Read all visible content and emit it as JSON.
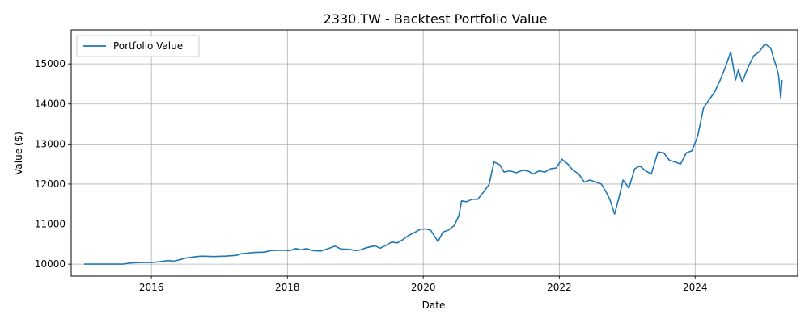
{
  "chart_data": {
    "type": "line",
    "title": "2330.TW - Backtest Portfolio Value",
    "xlabel": "Date",
    "ylabel": "Value ($)",
    "xlim": [
      "2014-10-27",
      "2025-07-05"
    ],
    "ylim": [
      9700,
      15850
    ],
    "x_ticks": [
      "2016",
      "2018",
      "2020",
      "2022",
      "2024"
    ],
    "y_ticks": [
      10000,
      11000,
      12000,
      13000,
      14000,
      15000
    ],
    "grid": true,
    "legend": "upper-left",
    "colors": {
      "series": "#1f77b4",
      "grid": "#b0b0b0"
    },
    "series": [
      {
        "name": "Portfolio Value",
        "points": [
          [
            "2015-01-05",
            10000
          ],
          [
            "2015-04-01",
            10000
          ],
          [
            "2015-08-01",
            10000
          ],
          [
            "2015-09-15",
            10030
          ],
          [
            "2015-11-01",
            10040
          ],
          [
            "2016-01-01",
            10040
          ],
          [
            "2016-02-15",
            10060
          ],
          [
            "2016-04-01",
            10090
          ],
          [
            "2016-05-01",
            10075
          ],
          [
            "2016-06-01",
            10110
          ],
          [
            "2016-07-01",
            10150
          ],
          [
            "2016-08-01",
            10170
          ],
          [
            "2016-09-01",
            10190
          ],
          [
            "2016-10-01",
            10200
          ],
          [
            "2016-12-01",
            10190
          ],
          [
            "2017-02-01",
            10200
          ],
          [
            "2017-04-01",
            10220
          ],
          [
            "2017-05-01",
            10260
          ],
          [
            "2017-07-01",
            10290
          ],
          [
            "2017-09-01",
            10300
          ],
          [
            "2017-10-01",
            10340
          ],
          [
            "2017-12-01",
            10350
          ],
          [
            "2018-01-15",
            10340
          ],
          [
            "2018-02-15",
            10390
          ],
          [
            "2018-03-15",
            10360
          ],
          [
            "2018-04-15",
            10390
          ],
          [
            "2018-05-15",
            10340
          ],
          [
            "2018-07-01",
            10330
          ],
          [
            "2018-08-15",
            10400
          ],
          [
            "2018-09-15",
            10450
          ],
          [
            "2018-10-15",
            10380
          ],
          [
            "2018-12-01",
            10370
          ],
          [
            "2019-01-01",
            10340
          ],
          [
            "2019-02-01",
            10360
          ],
          [
            "2019-03-01",
            10410
          ],
          [
            "2019-04-15",
            10460
          ],
          [
            "2019-05-15",
            10400
          ],
          [
            "2019-06-15",
            10470
          ],
          [
            "2019-07-15",
            10550
          ],
          [
            "2019-08-15",
            10530
          ],
          [
            "2019-09-15",
            10620
          ],
          [
            "2019-10-15",
            10720
          ],
          [
            "2019-11-15",
            10790
          ],
          [
            "2019-12-15",
            10870
          ],
          [
            "2020-01-10",
            10880
          ],
          [
            "2020-02-10",
            10850
          ],
          [
            "2020-03-20",
            10560
          ],
          [
            "2020-04-15",
            10800
          ],
          [
            "2020-05-15",
            10850
          ],
          [
            "2020-06-15",
            10960
          ],
          [
            "2020-07-10",
            11200
          ],
          [
            "2020-07-25",
            11580
          ],
          [
            "2020-08-20",
            11560
          ],
          [
            "2020-09-20",
            11620
          ],
          [
            "2020-10-20",
            11620
          ],
          [
            "2020-11-20",
            11800
          ],
          [
            "2020-12-20",
            11990
          ],
          [
            "2021-01-15",
            12550
          ],
          [
            "2021-02-15",
            12480
          ],
          [
            "2021-03-10",
            12300
          ],
          [
            "2021-04-10",
            12330
          ],
          [
            "2021-05-15",
            12280
          ],
          [
            "2021-06-15",
            12340
          ],
          [
            "2021-07-15",
            12330
          ],
          [
            "2021-08-15",
            12250
          ],
          [
            "2021-09-15",
            12330
          ],
          [
            "2021-10-15",
            12300
          ],
          [
            "2021-11-15",
            12380
          ],
          [
            "2021-12-15",
            12400
          ],
          [
            "2022-01-15",
            12620
          ],
          [
            "2022-02-15",
            12500
          ],
          [
            "2022-03-15",
            12350
          ],
          [
            "2022-04-15",
            12250
          ],
          [
            "2022-05-15",
            12050
          ],
          [
            "2022-06-15",
            12100
          ],
          [
            "2022-07-15",
            12050
          ],
          [
            "2022-08-15",
            12000
          ],
          [
            "2022-09-10",
            11800
          ],
          [
            "2022-10-01",
            11600
          ],
          [
            "2022-10-25",
            11250
          ],
          [
            "2022-11-20",
            11700
          ],
          [
            "2022-12-10",
            12100
          ],
          [
            "2023-01-10",
            11900
          ],
          [
            "2023-02-10",
            12380
          ],
          [
            "2023-03-10",
            12450
          ],
          [
            "2023-04-10",
            12330
          ],
          [
            "2023-05-10",
            12250
          ],
          [
            "2023-06-15",
            12800
          ],
          [
            "2023-07-15",
            12780
          ],
          [
            "2023-08-15",
            12600
          ],
          [
            "2023-09-15",
            12550
          ],
          [
            "2023-10-15",
            12500
          ],
          [
            "2023-11-15",
            12780
          ],
          [
            "2023-12-15",
            12830
          ],
          [
            "2024-01-15",
            13200
          ],
          [
            "2024-02-15",
            13900
          ],
          [
            "2024-03-15",
            14100
          ],
          [
            "2024-04-15",
            14300
          ],
          [
            "2024-05-15",
            14600
          ],
          [
            "2024-06-10",
            14900
          ],
          [
            "2024-07-10",
            15300
          ],
          [
            "2024-08-05",
            14600
          ],
          [
            "2024-08-20",
            14850
          ],
          [
            "2024-09-10",
            14550
          ],
          [
            "2024-10-10",
            14900
          ],
          [
            "2024-11-10",
            15200
          ],
          [
            "2024-12-10",
            15300
          ],
          [
            "2025-01-10",
            15500
          ],
          [
            "2025-02-10",
            15400
          ],
          [
            "2025-03-01",
            15100
          ],
          [
            "2025-03-15",
            14900
          ],
          [
            "2025-03-25",
            14700
          ],
          [
            "2025-04-05",
            14150
          ],
          [
            "2025-04-12",
            14600
          ]
        ]
      }
    ]
  }
}
